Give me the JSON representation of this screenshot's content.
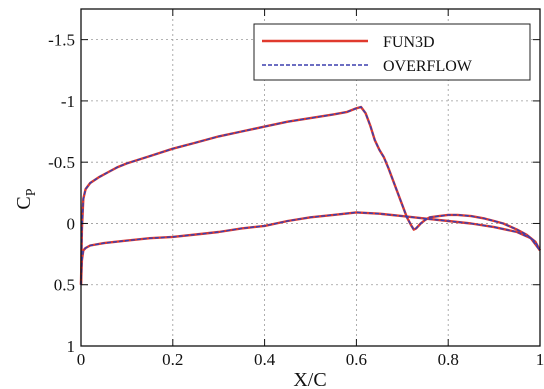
{
  "chart_data": {
    "type": "line",
    "title": "",
    "xlabel": "X/C",
    "ylabel": "C",
    "ylabel_subscript": "P",
    "xlim": [
      0,
      1
    ],
    "ylim": [
      1,
      -1.75
    ],
    "y_inverted": true,
    "grid": true,
    "legend_position": "top-right",
    "x_ticks": [
      0,
      0.2,
      0.4,
      0.6,
      0.8,
      1
    ],
    "x_tick_labels": [
      "0",
      "0.2",
      "0.4",
      "0.6",
      "0.8",
      "1"
    ],
    "y_ticks": [
      -1.5,
      -1,
      -0.5,
      0,
      0.5,
      1
    ],
    "y_tick_labels": [
      "-1.5",
      "-1",
      "-0.5",
      "0",
      "0.5",
      "1"
    ],
    "upper_surface": {
      "x": [
        0,
        0.002,
        0.005,
        0.01,
        0.02,
        0.04,
        0.06,
        0.08,
        0.1,
        0.15,
        0.2,
        0.25,
        0.3,
        0.35,
        0.4,
        0.45,
        0.5,
        0.55,
        0.58,
        0.6,
        0.61,
        0.62,
        0.63,
        0.64,
        0.65,
        0.66,
        0.67,
        0.68,
        0.69,
        0.7,
        0.71,
        0.72,
        0.725,
        0.73,
        0.74,
        0.75,
        0.76,
        0.78,
        0.8,
        0.82,
        0.85,
        0.88,
        0.9,
        0.92,
        0.95,
        0.97,
        0.99,
        1.0
      ],
      "y": [
        0.5,
        0.05,
        -0.2,
        -0.28,
        -0.33,
        -0.38,
        -0.42,
        -0.46,
        -0.49,
        -0.55,
        -0.61,
        -0.66,
        -0.71,
        -0.75,
        -0.79,
        -0.83,
        -0.86,
        -0.89,
        -0.91,
        -0.94,
        -0.95,
        -0.9,
        -0.8,
        -0.68,
        -0.6,
        -0.54,
        -0.45,
        -0.35,
        -0.25,
        -0.15,
        -0.05,
        0.02,
        0.05,
        0.04,
        0.0,
        -0.03,
        -0.05,
        -0.06,
        -0.07,
        -0.07,
        -0.06,
        -0.04,
        -0.02,
        0.0,
        0.05,
        0.09,
        0.15,
        0.22
      ]
    },
    "lower_surface": {
      "x": [
        0,
        0.002,
        0.005,
        0.01,
        0.02,
        0.05,
        0.1,
        0.15,
        0.2,
        0.25,
        0.3,
        0.35,
        0.4,
        0.45,
        0.5,
        0.55,
        0.6,
        0.65,
        0.7,
        0.75,
        0.8,
        0.85,
        0.9,
        0.95,
        0.98,
        1.0
      ],
      "y": [
        0.5,
        0.3,
        0.22,
        0.2,
        0.18,
        0.16,
        0.14,
        0.12,
        0.11,
        0.09,
        0.07,
        0.04,
        0.02,
        -0.02,
        -0.05,
        -0.07,
        -0.09,
        -0.08,
        -0.06,
        -0.04,
        -0.02,
        0.0,
        0.03,
        0.07,
        0.12,
        0.22
      ]
    },
    "series": [
      {
        "name": "FUN3D",
        "color": "#e03a2e",
        "style": "solid"
      },
      {
        "name": "OVERFLOW",
        "color": "#3b3fae",
        "style": "dashed"
      }
    ]
  }
}
